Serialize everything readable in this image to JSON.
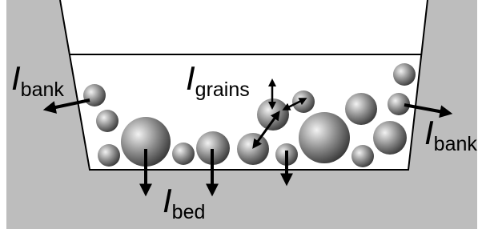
{
  "labels": [
    {
      "symbol": "I",
      "subscript": "bank"
    },
    {
      "symbol": "I",
      "subscript": "grains"
    },
    {
      "symbol": "I",
      "subscript": "bank"
    },
    {
      "symbol": "I",
      "subscript": "bed"
    }
  ]
}
